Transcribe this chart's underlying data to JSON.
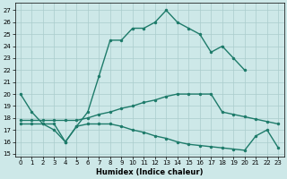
{
  "xlabel": "Humidex (Indice chaleur)",
  "xlim": [
    -0.5,
    23.5
  ],
  "ylim": [
    14.8,
    27.6
  ],
  "yticks": [
    15,
    16,
    17,
    18,
    19,
    20,
    21,
    22,
    23,
    24,
    25,
    26,
    27
  ],
  "xticks": [
    0,
    1,
    2,
    3,
    4,
    5,
    6,
    7,
    8,
    9,
    10,
    11,
    12,
    13,
    14,
    15,
    16,
    17,
    18,
    19,
    20,
    21,
    22,
    23
  ],
  "bg_color": "#cde8e8",
  "grid_color": "#aacccc",
  "line_color": "#1e7b6a",
  "line1_x": [
    0,
    1,
    2,
    3,
    4,
    5,
    6,
    7,
    8,
    9,
    10,
    11,
    12,
    13,
    14,
    15,
    16,
    17,
    18,
    19,
    20
  ],
  "line1_y": [
    20.0,
    18.5,
    17.5,
    17.0,
    16.0,
    17.3,
    18.5,
    21.5,
    24.5,
    24.5,
    25.5,
    25.5,
    26.0,
    27.0,
    26.0,
    25.5,
    25.0,
    23.5,
    24.0,
    23.0,
    22.0
  ],
  "line2_x": [
    0,
    1,
    2,
    3,
    4,
    5,
    6,
    7,
    8,
    9,
    10,
    11,
    12,
    13,
    14,
    15,
    16,
    17,
    18,
    19,
    20,
    21,
    22,
    23
  ],
  "line2_y": [
    17.8,
    17.8,
    17.8,
    17.8,
    17.8,
    17.8,
    18.0,
    18.3,
    18.5,
    18.8,
    19.0,
    19.3,
    19.5,
    19.8,
    20.0,
    20.0,
    20.0,
    20.0,
    18.5,
    18.3,
    18.1,
    17.9,
    17.7,
    17.5
  ],
  "line3_x": [
    0,
    1,
    2,
    3,
    4,
    5,
    6,
    7,
    8,
    9,
    10,
    11,
    12,
    13,
    14,
    15,
    16,
    17,
    18,
    19,
    20,
    21,
    22,
    23
  ],
  "line3_y": [
    17.5,
    17.5,
    17.5,
    17.5,
    16.0,
    17.3,
    17.5,
    17.5,
    17.5,
    17.3,
    17.0,
    16.8,
    16.5,
    16.3,
    16.0,
    15.8,
    15.7,
    15.6,
    15.5,
    15.4,
    15.3,
    16.5,
    17.0,
    15.5
  ]
}
